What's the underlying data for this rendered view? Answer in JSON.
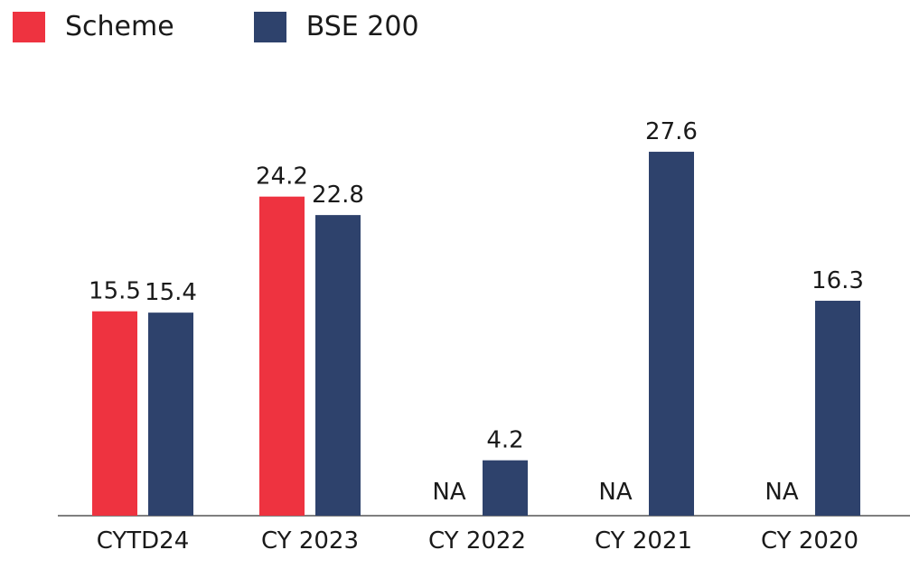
{
  "chart_data": {
    "type": "bar",
    "categories": [
      "CYTD24",
      "CY 2023",
      "CY 2022",
      "CY 2021",
      "CY 2020"
    ],
    "series": [
      {
        "name": "Scheme",
        "color": "#EE3340",
        "values": [
          15.5,
          24.2,
          null,
          null,
          null
        ],
        "labels": [
          "15.5",
          "24.2",
          "NA",
          "NA",
          "NA"
        ]
      },
      {
        "name": "BSE 200",
        "color": "#2E426C",
        "values": [
          15.4,
          22.8,
          4.2,
          27.6,
          16.3
        ],
        "labels": [
          "15.4",
          "22.8",
          "4.2",
          "27.6",
          "16.3"
        ]
      }
    ],
    "title": "",
    "xlabel": "",
    "ylabel": "",
    "ylim": [
      0,
      30
    ],
    "grid": false,
    "legend_position": "top-left",
    "axis_color": "#7F7F7F"
  }
}
